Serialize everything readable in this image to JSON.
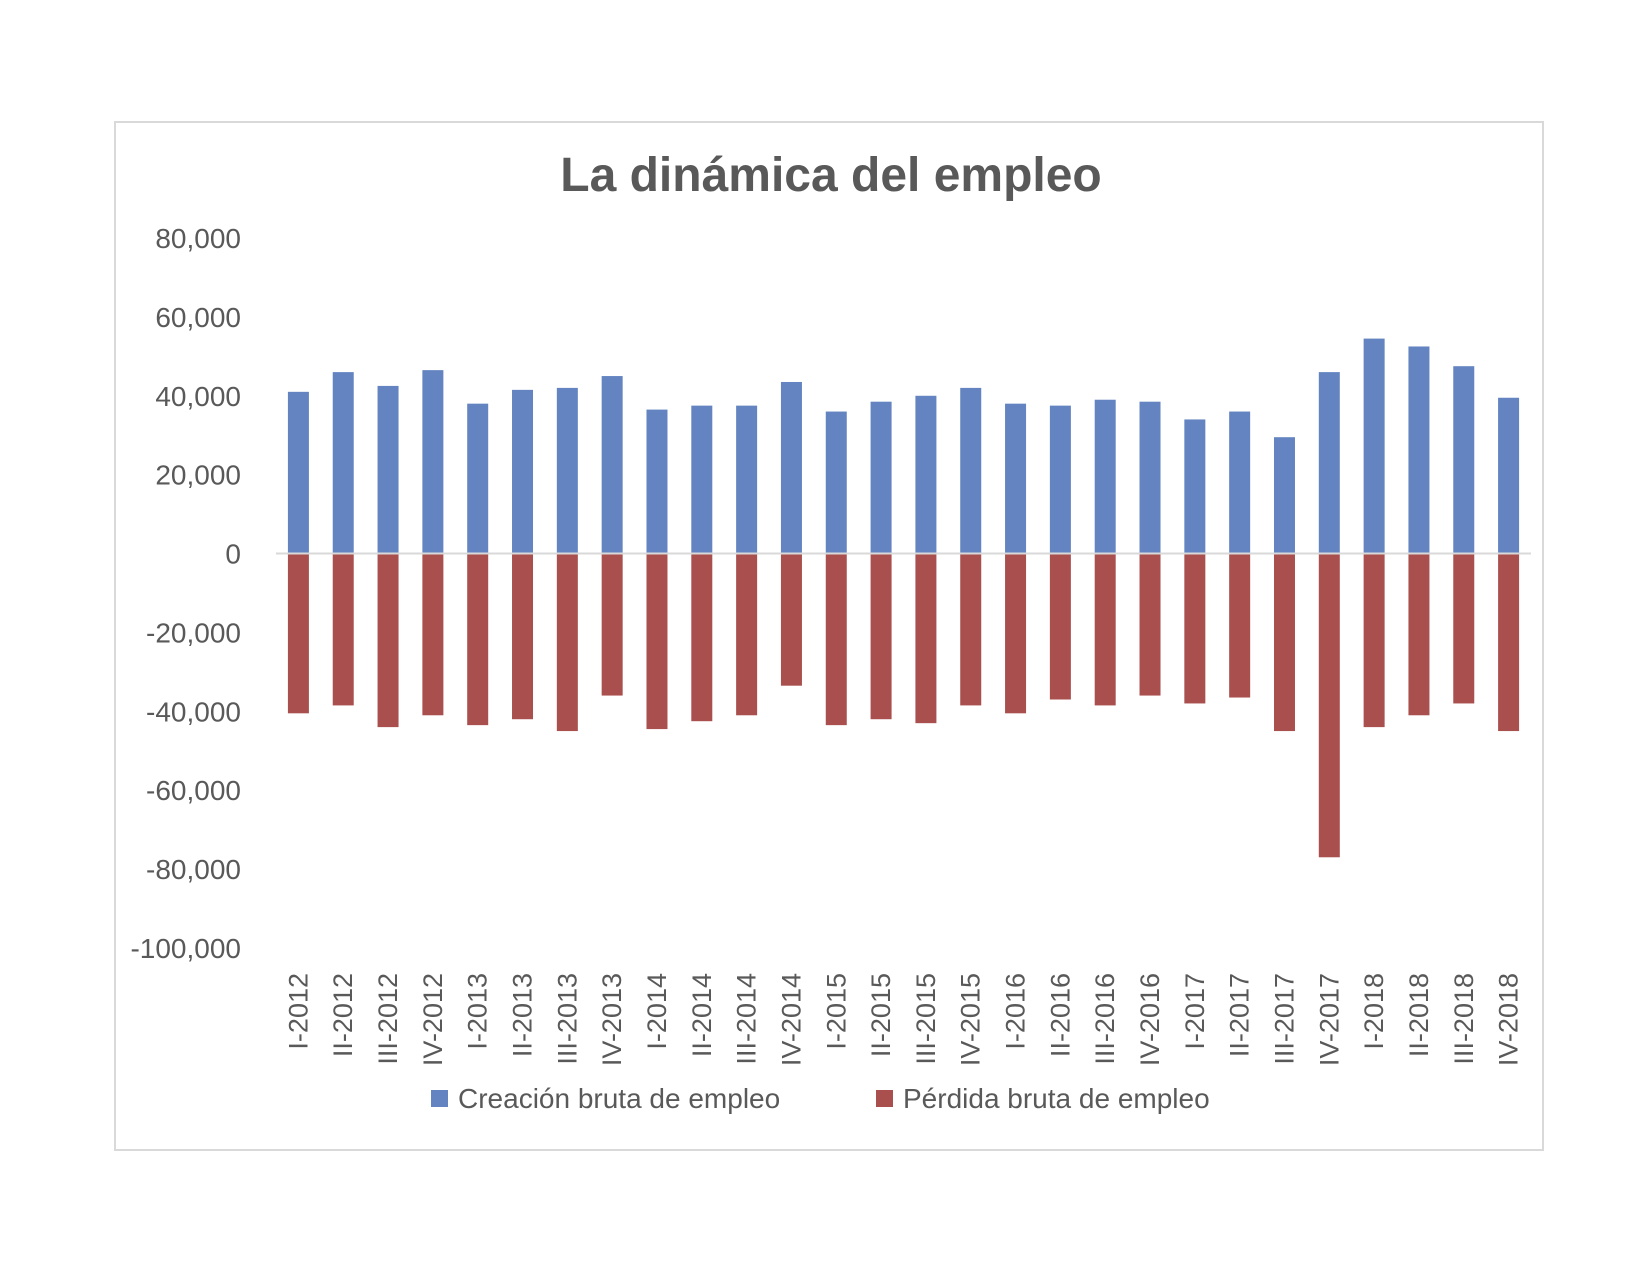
{
  "chart_data": {
    "type": "bar",
    "title": "La dinámica del empleo",
    "xlabel": "",
    "ylabel": "",
    "ylim": [
      -100000,
      80000
    ],
    "yticks": [
      80000,
      60000,
      40000,
      20000,
      0,
      -20000,
      -40000,
      -60000,
      -80000,
      -100000
    ],
    "ytick_labels": [
      "80,000",
      "60,000",
      "40,000",
      "20,000",
      "0",
      "-20,000",
      "-40,000",
      "-60,000",
      "-80,000",
      "-100,000"
    ],
    "grid": false,
    "legend_position": "bottom",
    "categories": [
      "I-2012",
      "II-2012",
      "III-2012",
      "IV-2012",
      "I-2013",
      "II-2013",
      "III-2013",
      "IV-2013",
      "I-2014",
      "II-2014",
      "III-2014",
      "IV-2014",
      "I-2015",
      "II-2015",
      "III-2015",
      "IV-2015",
      "I-2016",
      "II-2016",
      "III-2016",
      "IV-2016",
      "I-2017",
      "II-2017",
      "III-2017",
      "IV-2017",
      "I-2018",
      "II-2018",
      "III-2018",
      "IV-2018"
    ],
    "series": [
      {
        "name": "Creación bruta de empleo",
        "color": "#6384C0",
        "values": [
          41000,
          46000,
          42500,
          46500,
          38000,
          41500,
          42000,
          45000,
          36500,
          37500,
          37500,
          43500,
          36000,
          38500,
          40000,
          42000,
          38000,
          37500,
          39000,
          38500,
          34000,
          36000,
          29500,
          46000,
          54500,
          52500,
          47500,
          39500
        ]
      },
      {
        "name": "Pérdida bruta de empleo",
        "color": "#A94F4E",
        "values": [
          -40500,
          -38500,
          -44000,
          -41000,
          -43500,
          -42000,
          -45000,
          -36000,
          -44500,
          -42500,
          -41000,
          -33500,
          -43500,
          -42000,
          -43000,
          -38500,
          -40500,
          -37000,
          -38500,
          -36000,
          -38000,
          -36500,
          -45000,
          -77000,
          -44000,
          -41000,
          -38000,
          -45000
        ]
      }
    ]
  }
}
